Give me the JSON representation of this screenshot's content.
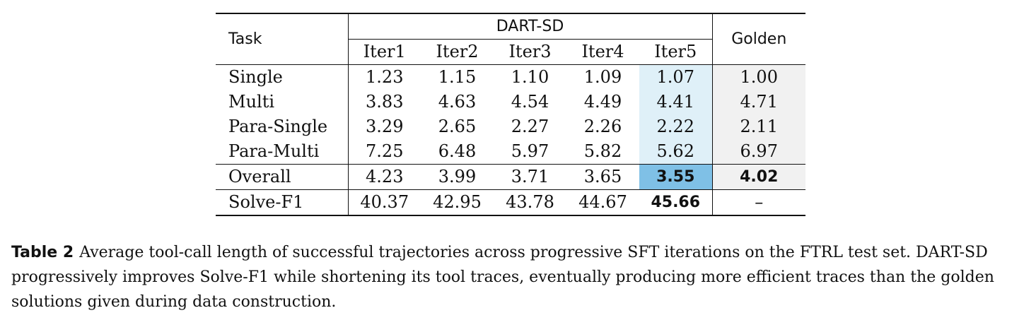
{
  "table": {
    "task_header": "Task",
    "group_header": "DART-SD",
    "golden_header": "Golden",
    "iter_headers": [
      "Iter1",
      "Iter2",
      "Iter3",
      "Iter4",
      "Iter5"
    ],
    "rows": [
      {
        "task": "Single",
        "values": [
          "1.23",
          "1.15",
          "1.10",
          "1.09",
          "1.07"
        ],
        "golden": "1.00"
      },
      {
        "task": "Multi",
        "values": [
          "3.83",
          "4.63",
          "4.54",
          "4.49",
          "4.41"
        ],
        "golden": "4.71"
      },
      {
        "task": "Para-Single",
        "values": [
          "3.29",
          "2.65",
          "2.27",
          "2.26",
          "2.22"
        ],
        "golden": "2.11"
      },
      {
        "task": "Para-Multi",
        "values": [
          "7.25",
          "6.48",
          "5.97",
          "5.82",
          "5.62"
        ],
        "golden": "6.97"
      }
    ],
    "overall": {
      "task": "Overall",
      "values": [
        "4.23",
        "3.99",
        "3.71",
        "3.65",
        "3.55"
      ],
      "golden": "4.02"
    },
    "solve": {
      "task": "Solve-F1",
      "values": [
        "40.37",
        "42.95",
        "43.78",
        "44.67",
        "45.66"
      ],
      "golden": "–"
    },
    "colors": {
      "iter5_highlight": "#dff0f8",
      "best_highlight": "#7fc0e6",
      "golden_highlight": "#f1f1f1"
    }
  },
  "caption": {
    "label": "Table 2",
    "text": "Average tool-call length of successful trajectories across progressive SFT iterations on the FTRL test set. DART-SD progressively improves Solve-F1 while shortening its tool traces, eventually producing more efficient traces than the golden solutions given during data construction."
  }
}
